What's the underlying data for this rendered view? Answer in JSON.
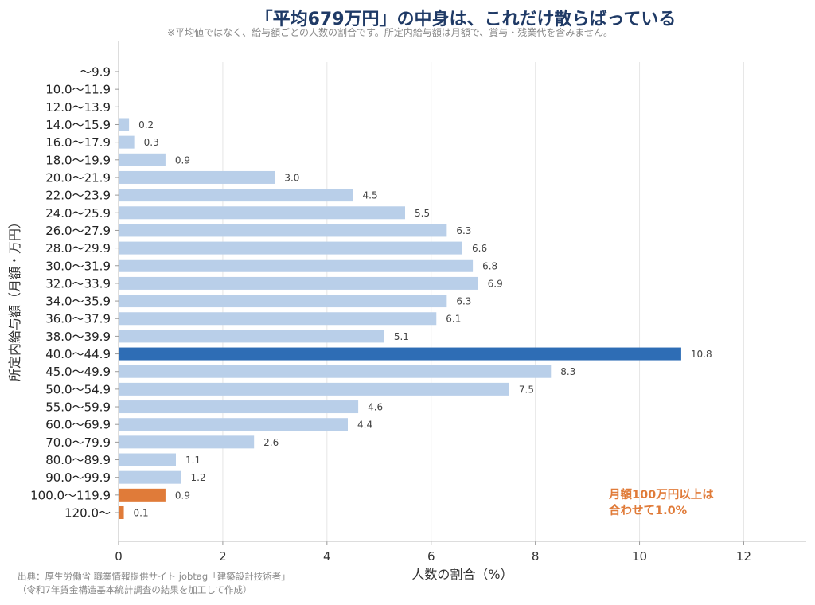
{
  "title": "「平均679万円」の中身は、これだけ散らばっている",
  "subtitle": "※平均値ではなく、給与額ごとの人数の割合です。所定内給与額は月額で、賞与・残業代を含みません。",
  "source": {
    "line1": "出典：厚生労働省 職業情報提供サイト jobtag「建築設計技術者」",
    "line2": "（令和7年賃金構造基本統計調査の結果を加工して作成）"
  },
  "annotation": {
    "line1": "月額100万円以上は",
    "line2": "合わせて1.0%"
  },
  "colors": {
    "normal": "#b9cfe9",
    "highlight_blue": "#2e6db5",
    "highlight_orange": "#e07b39",
    "title": "#1f3a66",
    "annotation": "#e07b39"
  },
  "chart_data": {
    "type": "bar",
    "orientation": "horizontal",
    "xlabel": "人数の割合（%）",
    "ylabel": "所定内給与額（月額・万円）",
    "xlim": [
      0,
      13.2
    ],
    "xticks": [
      0,
      2,
      4,
      6,
      8,
      10,
      12
    ],
    "grid": "vertical",
    "categories": [
      "〜9.9",
      "10.0〜11.9",
      "12.0〜13.9",
      "14.0〜15.9",
      "16.0〜17.9",
      "18.0〜19.9",
      "20.0〜21.9",
      "22.0〜23.9",
      "24.0〜25.9",
      "26.0〜27.9",
      "28.0〜29.9",
      "30.0〜31.9",
      "32.0〜33.9",
      "34.0〜35.9",
      "36.0〜37.9",
      "38.0〜39.9",
      "40.0〜44.9",
      "45.0〜49.9",
      "50.0〜54.9",
      "55.0〜59.9",
      "60.0〜69.9",
      "70.0〜79.9",
      "80.0〜89.9",
      "90.0〜99.9",
      "100.0〜119.9",
      "120.0〜"
    ],
    "values": [
      0,
      0,
      0,
      0.2,
      0.3,
      0.9,
      3.0,
      4.5,
      5.5,
      6.3,
      6.6,
      6.8,
      6.9,
      6.3,
      6.1,
      5.1,
      10.8,
      8.3,
      7.5,
      4.6,
      4.4,
      2.6,
      1.1,
      1.2,
      0.9,
      0.1
    ],
    "value_labels": [
      "",
      "",
      "",
      "0.2",
      "0.3",
      "0.9",
      "3.0",
      "4.5",
      "5.5",
      "6.3",
      "6.6",
      "6.8",
      "6.9",
      "6.3",
      "6.1",
      "5.1",
      "10.8",
      "8.3",
      "7.5",
      "4.6",
      "4.4",
      "2.6",
      "1.1",
      "1.2",
      "0.9",
      "0.1"
    ],
    "bar_colors": [
      "normal",
      "normal",
      "normal",
      "normal",
      "normal",
      "normal",
      "normal",
      "normal",
      "normal",
      "normal",
      "normal",
      "normal",
      "normal",
      "normal",
      "normal",
      "normal",
      "highlight_blue",
      "normal",
      "normal",
      "normal",
      "normal",
      "normal",
      "normal",
      "normal",
      "highlight_orange",
      "highlight_orange"
    ]
  }
}
